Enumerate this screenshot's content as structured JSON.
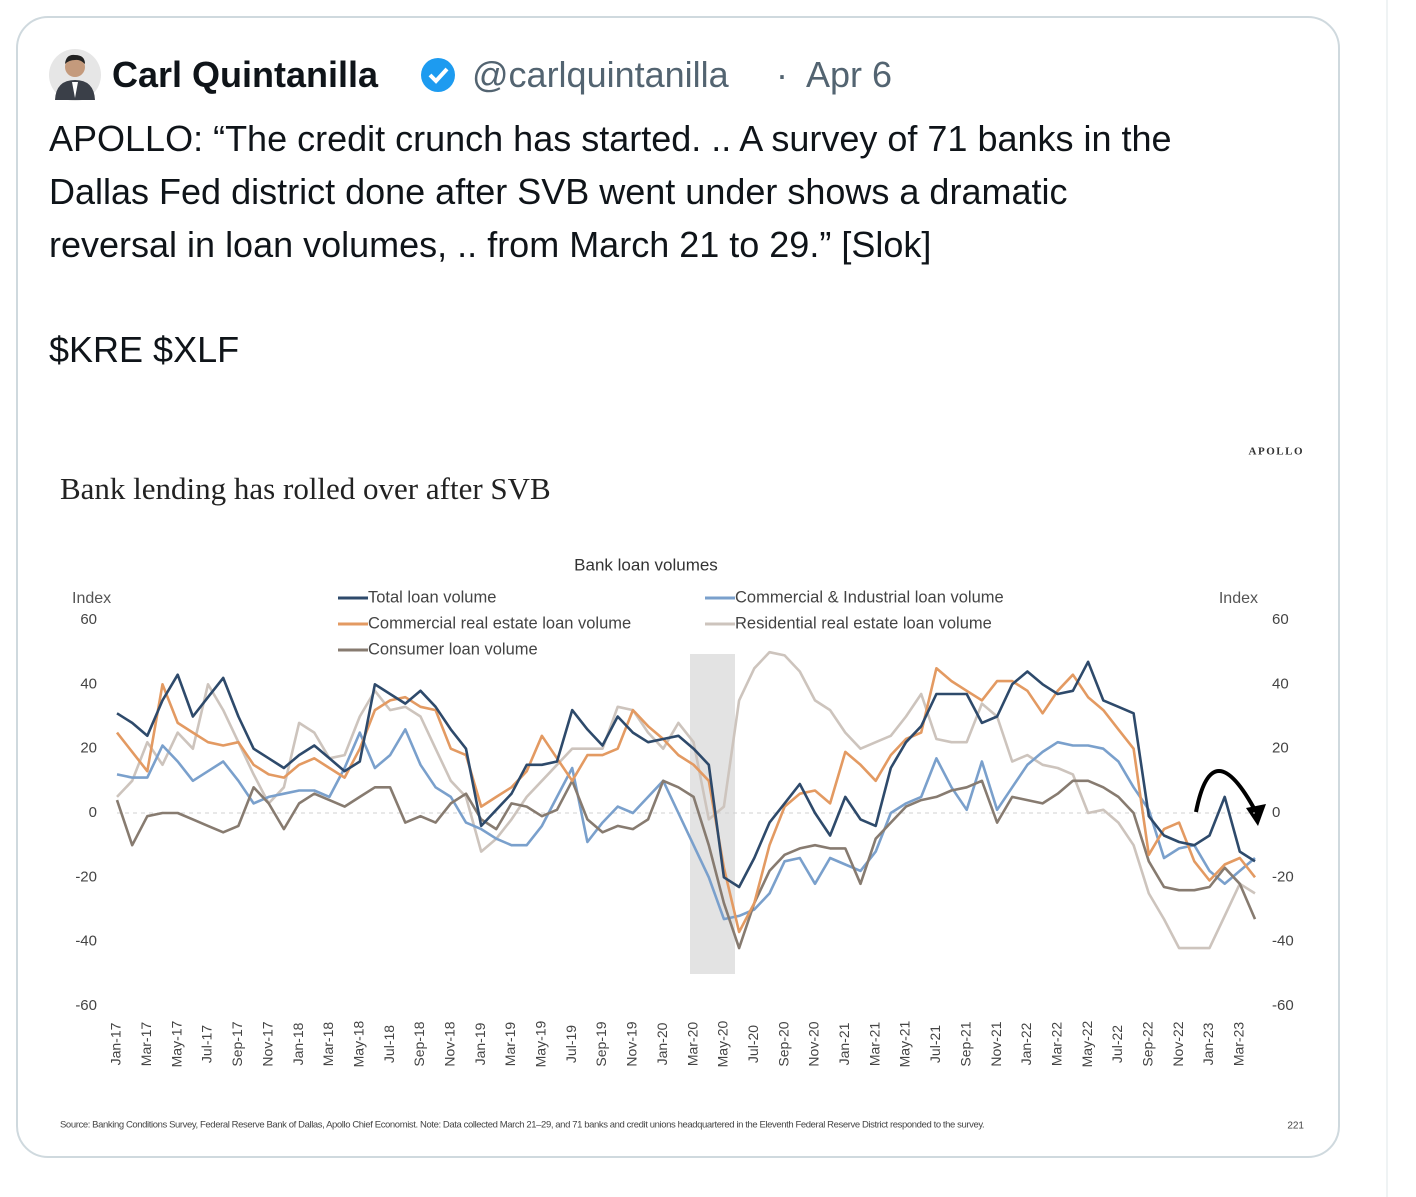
{
  "tweet": {
    "name": "Carl Quintanilla",
    "handle": "@carlquintanilla",
    "date": "Apr 6",
    "text": [
      "APOLLO: “The credit crunch has started. .. A survey of 71 banks in the",
      "Dallas Fed district done after SVB went under shows a dramatic",
      "reversal in loan volumes, .. from March 21 to 29.” [Slok]",
      "$KRE $XLF"
    ]
  },
  "chart_data": {
    "type": "line",
    "brand": "APOLLO",
    "title": "Bank lending has rolled over after SVB",
    "subtitle": "Bank loan volumes",
    "ylabel": "Index",
    "y2label": "Index",
    "source": "Source: Banking Conditions Survey, Federal Reserve Bank of Dallas, Apollo Chief Economist. Note: Data collected March 21–29, and 71 banks and credit unions headquartered in the Eleventh Federal Reserve District responded to the survey.",
    "page_number": "221",
    "ylim": [
      -60,
      60
    ],
    "yticks": [
      -60,
      -40,
      -20,
      0,
      20,
      40,
      60
    ],
    "y2lim": [
      -60,
      60
    ],
    "y2ticks": [
      -60,
      -40,
      -20,
      0,
      20,
      40,
      60
    ],
    "grid": false,
    "zero_line": true,
    "categories": [
      "Jan-17",
      null,
      "Mar-17",
      null,
      "May-17",
      null,
      "Jul-17",
      null,
      "Sep-17",
      null,
      "Nov-17",
      null,
      "Jan-18",
      null,
      "Mar-18",
      null,
      "May-18",
      null,
      "Jul-18",
      null,
      "Sep-18",
      null,
      "Nov-18",
      null,
      "Jan-19",
      null,
      "Mar-19",
      null,
      "May-19",
      null,
      "Jul-19",
      null,
      "Sep-19",
      null,
      "Nov-19",
      null,
      "Jan-20",
      null,
      "Mar-20",
      null,
      "May-20",
      null,
      "Jul-20",
      null,
      "Sep-20",
      null,
      "Nov-20",
      null,
      "Jan-21",
      null,
      "Mar-21",
      null,
      "May-21",
      null,
      "Jul-21",
      null,
      "Sep-21",
      null,
      "Nov-21",
      null,
      "Jan-22",
      null,
      "Mar-22",
      null,
      "May-22",
      null,
      "Jul-22",
      null,
      "Sep-22",
      null,
      "Nov-22",
      null,
      "Jan-23",
      null,
      "Mar-23",
      null
    ],
    "series": [
      {
        "name": "Total loan volume",
        "color": "#2e4a6b",
        "values": [
          31,
          28,
          24,
          35,
          43,
          30,
          36,
          42,
          30,
          20,
          17,
          14,
          18,
          21,
          17,
          13,
          16,
          40,
          37,
          34,
          38,
          33,
          26,
          20,
          -4,
          1,
          6,
          15,
          15,
          16,
          32,
          26,
          21,
          30,
          25,
          22,
          23,
          24,
          20,
          15,
          -20,
          -23,
          -14,
          -3,
          3,
          9,
          0,
          -7,
          5,
          -2,
          -4,
          14,
          22,
          27,
          37,
          37,
          37,
          28,
          30,
          40,
          44,
          40,
          37,
          38,
          47,
          35,
          33,
          31,
          -1,
          -7,
          -9,
          -10,
          -7,
          5,
          -12,
          -15
        ]
      },
      {
        "name": "Commercial & Industrial loan volume",
        "color": "#7aa0cc",
        "values": [
          12,
          11,
          11,
          21,
          16,
          10,
          13,
          16,
          10,
          3,
          5,
          6,
          7,
          7,
          5,
          14,
          25,
          14,
          18,
          26,
          15,
          8,
          5,
          -3,
          -5,
          -8,
          -10,
          -10,
          -4,
          5,
          14,
          -9,
          -3,
          2,
          0,
          5,
          10,
          0,
          -10,
          -20,
          -33,
          -32,
          -30,
          -25,
          -15,
          -14,
          -22,
          -14,
          -16,
          -18,
          -12,
          0,
          3,
          5,
          17,
          8,
          1,
          16,
          1,
          8,
          15,
          19,
          22,
          21,
          21,
          20,
          16,
          8,
          1,
          -14,
          -11,
          -10,
          -18,
          -22,
          -18,
          -14
        ]
      },
      {
        "name": "Commercial real estate loan volume",
        "color": "#e39a62",
        "values": [
          25,
          19,
          13,
          40,
          28,
          25,
          22,
          21,
          22,
          15,
          12,
          11,
          15,
          17,
          14,
          11,
          20,
          32,
          35,
          36,
          33,
          32,
          20,
          18,
          2,
          5,
          8,
          13,
          24,
          17,
          10,
          18,
          18,
          20,
          32,
          27,
          23,
          18,
          15,
          10,
          -17,
          -37,
          -28,
          -10,
          2,
          6,
          7,
          3,
          19,
          15,
          10,
          18,
          23,
          25,
          45,
          41,
          38,
          35,
          41,
          41,
          38,
          31,
          38,
          43,
          36,
          32,
          26,
          20,
          -13,
          -5,
          -3,
          -15,
          -21,
          -16,
          -14,
          -20
        ]
      },
      {
        "name": "Residential real estate loan volume",
        "color": "#cdc4bd",
        "values": [
          5,
          10,
          22,
          15,
          25,
          20,
          40,
          32,
          22,
          12,
          3,
          8,
          28,
          25,
          17,
          18,
          30,
          38,
          32,
          33,
          30,
          20,
          10,
          5,
          -12,
          -8,
          -2,
          5,
          10,
          15,
          20,
          20,
          20,
          33,
          32,
          25,
          20,
          28,
          22,
          -2,
          2,
          35,
          45,
          50,
          49,
          44,
          35,
          32,
          25,
          20,
          22,
          24,
          30,
          37,
          23,
          22,
          22,
          34,
          30,
          16,
          18,
          15,
          14,
          12,
          0,
          1,
          -3,
          -10,
          -25,
          -33,
          -42,
          -42,
          -42,
          -32,
          -22,
          -25
        ]
      },
      {
        "name": "Consumer loan volume",
        "color": "#877b70",
        "values": [
          4,
          -10,
          -1,
          0,
          0,
          -2,
          -4,
          -6,
          -4,
          8,
          3,
          -5,
          3,
          6,
          4,
          2,
          5,
          8,
          8,
          -3,
          -1,
          -3,
          3,
          6,
          -2,
          -5,
          3,
          2,
          -1,
          1,
          10,
          -2,
          -6,
          -4,
          -5,
          -2,
          10,
          8,
          5,
          -10,
          -28,
          -42,
          -28,
          -18,
          -13,
          -11,
          -10,
          -11,
          -11,
          -22,
          -8,
          -3,
          2,
          4,
          5,
          7,
          8,
          10,
          -3,
          5,
          4,
          3,
          6,
          10,
          10,
          8,
          5,
          0,
          -15,
          -23,
          -24,
          -24,
          -23,
          -17,
          -22,
          -33
        ]
      }
    ]
  }
}
